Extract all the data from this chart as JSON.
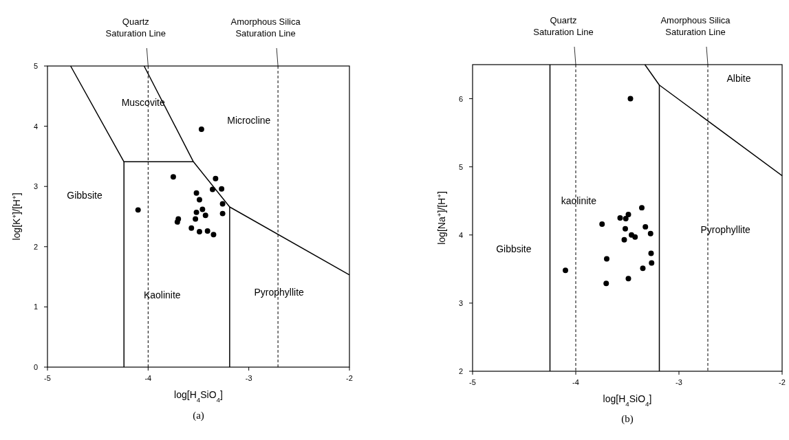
{
  "chart_data": [
    {
      "type": "scatter",
      "xlabel": "log[H$_{4}$SiO$_{4}$]",
      "ylabel": "log[K$^{+}$]/[H$^{+}$]",
      "xlim": [
        -5,
        -2
      ],
      "xticks": [
        -5,
        -4,
        -3,
        -2
      ],
      "ylim": [
        0,
        5
      ],
      "yticks": [
        0,
        1,
        2,
        3,
        4,
        5
      ],
      "series": [
        {
          "color": "#000000",
          "marker": "circle",
          "x": [
            -4.1,
            -3.47,
            -3.75,
            -3.33,
            -3.36,
            -3.27,
            -3.52,
            -3.49,
            -3.26,
            -3.46,
            -3.52,
            -3.43,
            -3.26,
            -3.7,
            -3.71,
            -3.53,
            -3.57,
            -3.49,
            -3.41,
            -3.35
          ],
          "values": [
            2.61,
            3.95,
            3.16,
            3.13,
            2.95,
            2.96,
            2.89,
            2.78,
            2.71,
            2.62,
            2.57,
            2.52,
            2.55,
            2.46,
            2.41,
            2.46,
            2.31,
            2.25,
            2.26,
            2.2
          ]
        },
        {
          "type": "line",
          "color": "#000000",
          "x": [
            -4.77,
            -4.24,
            -3.55,
            -4.04
          ],
          "values": [
            5,
            3.41,
            3.41,
            5
          ]
        },
        {
          "type": "line",
          "color": "#000000",
          "x": [
            -3.55,
            -3.19,
            -2
          ],
          "values": [
            3.41,
            2.66,
            1.53
          ]
        },
        {
          "type": "line",
          "color": "#000000",
          "x": [
            -4.24,
            -4.24
          ],
          "values": [
            3.41,
            0
          ]
        },
        {
          "type": "line",
          "color": "#000000",
          "x": [
            -3.19,
            -3.19
          ],
          "values": [
            2.66,
            0
          ]
        }
      ],
      "ref_lines": [
        {
          "axis": "x",
          "value": -4,
          "label": "Quartz Saturation Line",
          "line_style": "dashed"
        },
        {
          "axis": "x",
          "value": -2.71,
          "label": "Amorphous Silica Saturation Line",
          "line_style": "dashed"
        }
      ],
      "annotations": [
        "Muscovite",
        "Microcline",
        "Gibbsite",
        "Kaolinite",
        "Pyrophyllite",
        "(a)"
      ]
    },
    {
      "type": "scatter",
      "xlabel": "log[H$_{4}$SiO$_{4}$]",
      "ylabel": "log[Na$^{+}$]/[H$^{+}$]",
      "xlim": [
        -5,
        -2
      ],
      "xticks": [
        -5,
        -4,
        -3,
        -2
      ],
      "ylim": [
        2,
        6.5
      ],
      "yticks": [
        2,
        3,
        4,
        5,
        6
      ],
      "series": [
        {
          "color": "#000000",
          "marker": "circle",
          "x": [
            -4.1,
            -3.47,
            -3.745,
            -3.36,
            -3.49,
            -3.57,
            -3.515,
            -3.325,
            -3.52,
            -3.275,
            -3.46,
            -3.425,
            -3.53,
            -3.27,
            -3.7,
            -3.265,
            -3.35,
            -3.49,
            -3.705
          ],
          "values": [
            3.48,
            6.0,
            4.16,
            4.4,
            4.3,
            4.25,
            4.24,
            4.12,
            4.09,
            4.02,
            4.0,
            3.97,
            3.93,
            3.73,
            3.65,
            3.59,
            3.51,
            3.36,
            3.29
          ]
        },
        {
          "type": "line",
          "color": "#000000",
          "x": [
            -4.25,
            -4.25
          ],
          "values": [
            2,
            6.5
          ]
        },
        {
          "type": "line",
          "color": "#000000",
          "x": [
            -3.19,
            -3.19
          ],
          "values": [
            2,
            6.2
          ]
        },
        {
          "type": "line",
          "color": "#000000",
          "x": [
            -3.33,
            -3.19,
            -2
          ],
          "values": [
            6.5,
            6.2,
            4.87
          ]
        }
      ],
      "ref_lines": [
        {
          "axis": "x",
          "value": -4,
          "label": "Quartz Saturation Line",
          "line_style": "dashed"
        },
        {
          "axis": "x",
          "value": -2.72,
          "label": "Amorphous Silica Saturation Line",
          "line_style": "dashed"
        }
      ],
      "annotations": [
        "Gibbsite",
        "kaolinite",
        "Pyrophyllite",
        "Albite",
        "(b)"
      ]
    }
  ]
}
